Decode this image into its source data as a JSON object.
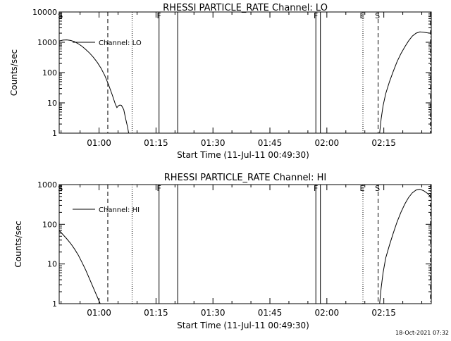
{
  "footer": {
    "timestamp": "18-Oct-2021 07:32"
  },
  "chart_data": [
    {
      "type": "line",
      "title": "RHESSI PARTICLE_RATE Channel: LO",
      "xlabel": "Start Time (11-Jul-11 00:49:30)",
      "ylabel": "Counts/sec",
      "yscale": "log",
      "xlim": [
        0,
        98
      ],
      "ylim": [
        1,
        10000
      ],
      "xticks": [
        {
          "min": 10.5,
          "label": "01:00"
        },
        {
          "min": 25.5,
          "label": "01:15"
        },
        {
          "min": 40.5,
          "label": "01:30"
        },
        {
          "min": 55.5,
          "label": "01:45"
        },
        {
          "min": 70.5,
          "label": "02:00"
        },
        {
          "min": 85.5,
          "label": "02:15"
        }
      ],
      "yticks": [
        {
          "value": 1,
          "label": "1"
        },
        {
          "value": 10,
          "label": "10"
        },
        {
          "value": 100,
          "label": "100"
        },
        {
          "value": 1000,
          "label": "1000"
        },
        {
          "value": 10000,
          "label": "10000"
        }
      ],
      "legend": {
        "label": "Channel: LO",
        "position": "top-left"
      },
      "series": [
        {
          "name": "Channel: LO",
          "segments": [
            [
              [
                0,
                1100
              ],
              [
                1,
                1180
              ],
              [
                2,
                1200
              ],
              [
                3,
                1150
              ],
              [
                4,
                1050
              ],
              [
                5,
                900
              ],
              [
                6,
                740
              ],
              [
                7,
                580
              ],
              [
                8,
                440
              ],
              [
                9,
                320
              ],
              [
                10,
                220
              ],
              [
                11,
                140
              ],
              [
                12,
                80
              ],
              [
                13,
                40
              ],
              [
                14,
                18
              ],
              [
                14.8,
                9
              ],
              [
                15.2,
                7
              ],
              [
                15.6,
                8
              ],
              [
                16,
                8.5
              ],
              [
                16.4,
                8.2
              ],
              [
                17,
                6
              ],
              [
                17.5,
                3
              ],
              [
                18,
                1.6
              ],
              [
                18.3,
                1
              ]
            ],
            [
              [
                84.4,
                1
              ],
              [
                84.8,
                3
              ],
              [
                85.3,
                8
              ],
              [
                86,
                20
              ],
              [
                87,
                50
              ],
              [
                88,
                110
              ],
              [
                89,
                230
              ],
              [
                90,
                420
              ],
              [
                91,
                700
              ],
              [
                92,
                1100
              ],
              [
                93,
                1600
              ],
              [
                94,
                2000
              ],
              [
                95,
                2200
              ],
              [
                96,
                2150
              ],
              [
                97,
                2050
              ],
              [
                97.8,
                2000
              ]
            ]
          ]
        }
      ],
      "markers": [
        {
          "min": 0.5,
          "label": "S",
          "style": "solid-tick"
        },
        {
          "min": 12.8,
          "label": "",
          "style": "dashed"
        },
        {
          "min": 19.2,
          "label": "",
          "style": "dotted"
        },
        {
          "min": 26.3,
          "label": "F",
          "style": "solid"
        },
        {
          "min": 31.2,
          "label": "",
          "style": "solid"
        },
        {
          "min": 67.6,
          "label": "F",
          "style": "solid"
        },
        {
          "min": 68.8,
          "label": "",
          "style": "solid"
        },
        {
          "min": 80.0,
          "label": "E",
          "style": "dotted"
        },
        {
          "min": 84.0,
          "label": "S",
          "style": "dashed"
        },
        {
          "min": 97.8,
          "label": "",
          "style": "dashdot"
        }
      ]
    },
    {
      "type": "line",
      "title": "RHESSI PARTICLE_RATE Channel: HI",
      "xlabel": "Start Time (11-Jul-11 00:49:30)",
      "ylabel": "Counts/sec",
      "yscale": "log",
      "xlim": [
        0,
        98
      ],
      "ylim": [
        1,
        1000
      ],
      "xticks": [
        {
          "min": 10.5,
          "label": "01:00"
        },
        {
          "min": 25.5,
          "label": "01:15"
        },
        {
          "min": 40.5,
          "label": "01:30"
        },
        {
          "min": 55.5,
          "label": "01:45"
        },
        {
          "min": 70.5,
          "label": "02:00"
        },
        {
          "min": 85.5,
          "label": "02:15"
        }
      ],
      "yticks": [
        {
          "value": 1,
          "label": "1"
        },
        {
          "value": 10,
          "label": "10"
        },
        {
          "value": 100,
          "label": "100"
        },
        {
          "value": 1000,
          "label": "1000"
        }
      ],
      "legend": {
        "label": "Channel: HI",
        "position": "top-left"
      },
      "series": [
        {
          "name": "Channel: HI",
          "segments": [
            [
              [
                0,
                70
              ],
              [
                1,
                55
              ],
              [
                2,
                43
              ],
              [
                3,
                33
              ],
              [
                4,
                24
              ],
              [
                5,
                17
              ],
              [
                6,
                11
              ],
              [
                7,
                7
              ],
              [
                8,
                4.2
              ],
              [
                9,
                2.5
              ],
              [
                10,
                1.5
              ],
              [
                10.8,
                1
              ]
            ],
            [
              [
                84.4,
                1
              ],
              [
                84.8,
                2.5
              ],
              [
                85.3,
                6
              ],
              [
                86,
                14
              ],
              [
                87,
                30
              ],
              [
                88,
                60
              ],
              [
                89,
                115
              ],
              [
                90,
                200
              ],
              [
                91,
                320
              ],
              [
                92,
                470
              ],
              [
                93,
                620
              ],
              [
                94,
                730
              ],
              [
                95,
                760
              ],
              [
                96,
                700
              ],
              [
                97,
                600
              ],
              [
                97.8,
                500
              ]
            ]
          ]
        }
      ],
      "markers": [
        {
          "min": 0.5,
          "label": "S",
          "style": "solid-tick"
        },
        {
          "min": 12.8,
          "label": "",
          "style": "dashed"
        },
        {
          "min": 19.2,
          "label": "",
          "style": "dotted"
        },
        {
          "min": 26.3,
          "label": "F",
          "style": "solid"
        },
        {
          "min": 31.2,
          "label": "",
          "style": "solid"
        },
        {
          "min": 67.6,
          "label": "F",
          "style": "solid"
        },
        {
          "min": 68.8,
          "label": "",
          "style": "solid"
        },
        {
          "min": 80.0,
          "label": "E",
          "style": "dotted"
        },
        {
          "min": 84.0,
          "label": "S",
          "style": "dashed"
        },
        {
          "min": 97.8,
          "label": "",
          "style": "dashdot"
        }
      ]
    }
  ]
}
